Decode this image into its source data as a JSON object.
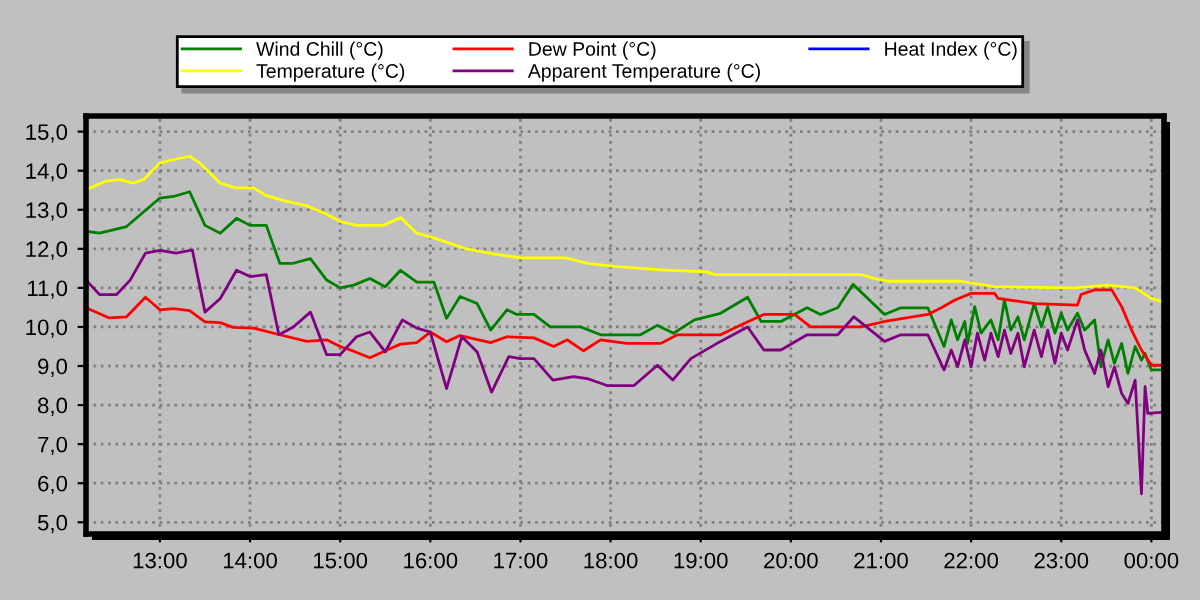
{
  "chart_data": {
    "type": "line",
    "xlim": [
      12.18,
      24.14
    ],
    "ylim": [
      4.7,
      15.4
    ],
    "xticks": [
      {
        "value": 13,
        "label": "13:00"
      },
      {
        "value": 14,
        "label": "14:00"
      },
      {
        "value": 15,
        "label": "15:00"
      },
      {
        "value": 16,
        "label": "16:00"
      },
      {
        "value": 17,
        "label": "17:00"
      },
      {
        "value": 18,
        "label": "18:00"
      },
      {
        "value": 19,
        "label": "19:00"
      },
      {
        "value": 20,
        "label": "20:00"
      },
      {
        "value": 21,
        "label": "21:00"
      },
      {
        "value": 22,
        "label": "22:00"
      },
      {
        "value": 23,
        "label": "23:00"
      },
      {
        "value": 24,
        "label": "00:00"
      }
    ],
    "yticks": [
      {
        "value": 5,
        "label": "5,0"
      },
      {
        "value": 6,
        "label": "6,0"
      },
      {
        "value": 7,
        "label": "7,0"
      },
      {
        "value": 8,
        "label": "8,0"
      },
      {
        "value": 9,
        "label": "9,0"
      },
      {
        "value": 10,
        "label": "10,0"
      },
      {
        "value": 11,
        "label": "11,0"
      },
      {
        "value": 12,
        "label": "12,0"
      },
      {
        "value": 13,
        "label": "13,0"
      },
      {
        "value": 14,
        "label": "14,0"
      },
      {
        "value": 15,
        "label": "15,0"
      }
    ],
    "grid": true,
    "legend": "top",
    "marker": "none",
    "line_style": "solid",
    "series": [
      {
        "name": "Wind Chill (°C)",
        "color": "#008000",
        "x": [
          12.18,
          12.33,
          12.63,
          13.0,
          13.15,
          13.33,
          13.5,
          13.67,
          13.85,
          14.0,
          14.18,
          14.33,
          14.48,
          14.67,
          14.85,
          15.0,
          15.15,
          15.33,
          15.5,
          15.67,
          15.85,
          16.04,
          16.18,
          16.33,
          16.52,
          16.67,
          16.85,
          16.96,
          17.15,
          17.33,
          17.67,
          17.89,
          18.33,
          18.52,
          18.7,
          18.93,
          19.22,
          19.52,
          19.67,
          19.89,
          20.18,
          20.33,
          20.52,
          20.69,
          21.04,
          21.22,
          21.52,
          21.7,
          21.78,
          21.85,
          21.93,
          21.96,
          22.04,
          22.11,
          22.22,
          22.3,
          22.37,
          22.44,
          22.52,
          22.59,
          22.7,
          22.78,
          22.85,
          22.93,
          23.0,
          23.07,
          23.18,
          23.26,
          23.37,
          23.44,
          23.52,
          23.59,
          23.67,
          23.74,
          23.82,
          23.89,
          23.93,
          24.0,
          24.14
        ],
        "values": [
          12.45,
          12.4,
          12.57,
          13.3,
          13.34,
          13.46,
          12.6,
          12.4,
          12.78,
          12.6,
          12.6,
          11.63,
          11.63,
          11.75,
          11.2,
          11.0,
          11.07,
          11.24,
          11.03,
          11.45,
          11.15,
          11.15,
          10.22,
          10.78,
          10.6,
          9.92,
          10.44,
          10.32,
          10.32,
          10.0,
          10.0,
          9.8,
          9.8,
          10.04,
          9.84,
          10.18,
          10.35,
          10.76,
          10.14,
          10.14,
          10.49,
          10.32,
          10.49,
          11.09,
          10.32,
          10.49,
          10.49,
          9.5,
          10.18,
          9.67,
          10.14,
          9.58,
          10.52,
          9.84,
          10.18,
          9.67,
          10.69,
          9.92,
          10.26,
          9.67,
          10.6,
          10.0,
          10.52,
          9.84,
          10.35,
          9.92,
          10.35,
          9.92,
          10.18,
          8.98,
          9.67,
          9.07,
          9.58,
          8.81,
          9.5,
          9.15,
          9.32,
          8.9,
          8.9
        ]
      },
      {
        "name": "Dew Point (°C)",
        "color": "#ff0000",
        "x": [
          12.18,
          12.44,
          12.63,
          12.84,
          13.0,
          13.15,
          13.33,
          13.5,
          13.67,
          13.81,
          14.04,
          14.33,
          14.63,
          14.85,
          15.0,
          15.15,
          15.33,
          15.52,
          15.67,
          15.85,
          16.0,
          16.18,
          16.33,
          16.67,
          16.85,
          17.15,
          17.37,
          17.52,
          17.7,
          17.89,
          18.18,
          18.56,
          18.74,
          19.22,
          19.48,
          19.7,
          20.04,
          20.22,
          20.78,
          21.04,
          21.52,
          21.67,
          21.82,
          22.0,
          22.26,
          22.3,
          22.7,
          23.18,
          23.22,
          23.37,
          23.56,
          23.67,
          23.78,
          23.89,
          24.0,
          24.14
        ],
        "values": [
          10.49,
          10.23,
          10.26,
          10.76,
          10.44,
          10.47,
          10.42,
          10.13,
          10.11,
          9.99,
          9.97,
          9.8,
          9.63,
          9.67,
          9.5,
          9.38,
          9.21,
          9.41,
          9.56,
          9.6,
          9.87,
          9.62,
          9.78,
          9.6,
          9.75,
          9.72,
          9.5,
          9.67,
          9.39,
          9.67,
          9.58,
          9.58,
          9.8,
          9.8,
          10.09,
          10.32,
          10.32,
          10.0,
          10.0,
          10.14,
          10.32,
          10.49,
          10.69,
          10.86,
          10.86,
          10.73,
          10.6,
          10.56,
          10.83,
          10.95,
          10.95,
          10.52,
          9.92,
          9.41,
          9.02,
          9.02
        ]
      },
      {
        "name": "Heat Index (°C)",
        "color": "#0000ff"
      },
      {
        "name": "Temperature (°C)",
        "color": "#ffff00",
        "x": [
          12.18,
          12.4,
          12.56,
          12.7,
          12.82,
          13.0,
          13.15,
          13.33,
          13.44,
          13.67,
          13.84,
          14.04,
          14.18,
          14.4,
          14.63,
          14.84,
          15.0,
          15.18,
          15.48,
          15.67,
          15.85,
          16.04,
          16.4,
          16.7,
          17.0,
          17.5,
          17.74,
          18.04,
          18.56,
          19.07,
          19.15,
          20.78,
          20.93,
          21.07,
          21.89,
          22.26,
          23.15,
          23.51,
          23.82,
          24.0,
          24.14
        ],
        "values": [
          13.51,
          13.73,
          13.77,
          13.68,
          13.77,
          14.2,
          14.28,
          14.37,
          14.2,
          13.68,
          13.56,
          13.56,
          13.36,
          13.22,
          13.1,
          12.9,
          12.7,
          12.6,
          12.6,
          12.8,
          12.4,
          12.28,
          12.0,
          11.87,
          11.77,
          11.77,
          11.63,
          11.55,
          11.46,
          11.41,
          11.34,
          11.34,
          11.24,
          11.17,
          11.17,
          11.03,
          11.0,
          11.07,
          11.0,
          10.73,
          10.64
        ]
      },
      {
        "name": "Apparent Temperature (°C)",
        "color": "#800080",
        "x": [
          12.18,
          12.33,
          12.52,
          12.67,
          12.84,
          13.0,
          13.18,
          13.36,
          13.5,
          13.67,
          13.85,
          14.0,
          14.18,
          14.32,
          14.48,
          14.67,
          14.85,
          15.0,
          15.18,
          15.33,
          15.5,
          15.69,
          15.85,
          16.0,
          16.18,
          16.35,
          16.52,
          16.68,
          16.87,
          17.0,
          17.15,
          17.36,
          17.59,
          17.74,
          17.89,
          17.96,
          18.26,
          18.52,
          18.69,
          18.89,
          19.22,
          19.52,
          19.7,
          19.89,
          20.18,
          20.52,
          20.7,
          21.04,
          21.22,
          21.52,
          21.7,
          21.78,
          21.85,
          21.93,
          22.0,
          22.07,
          22.15,
          22.22,
          22.3,
          22.37,
          22.44,
          22.52,
          22.59,
          22.7,
          22.78,
          22.85,
          22.93,
          23.0,
          23.07,
          23.18,
          23.26,
          23.37,
          23.44,
          23.52,
          23.59,
          23.67,
          23.74,
          23.82,
          23.89,
          23.93,
          23.96,
          24.14
        ],
        "values": [
          11.2,
          10.83,
          10.83,
          11.2,
          11.89,
          11.96,
          11.89,
          11.97,
          10.38,
          10.73,
          11.45,
          11.29,
          11.34,
          9.8,
          10.0,
          10.38,
          9.29,
          9.29,
          9.75,
          9.87,
          9.36,
          10.18,
          9.97,
          9.87,
          8.42,
          9.75,
          9.36,
          8.33,
          9.24,
          9.19,
          9.19,
          8.64,
          8.73,
          8.68,
          8.56,
          8.5,
          8.5,
          9.02,
          8.64,
          9.19,
          9.63,
          10.0,
          9.41,
          9.41,
          9.8,
          9.8,
          10.26,
          9.63,
          9.8,
          9.8,
          8.9,
          9.41,
          8.98,
          9.67,
          8.98,
          9.84,
          9.15,
          9.84,
          9.24,
          9.92,
          9.32,
          9.84,
          8.98,
          9.92,
          9.24,
          9.92,
          9.07,
          9.84,
          9.41,
          10.18,
          9.41,
          8.81,
          9.41,
          8.47,
          8.98,
          8.3,
          8.04,
          8.64,
          5.73,
          8.47,
          7.79,
          7.82
        ]
      }
    ]
  }
}
